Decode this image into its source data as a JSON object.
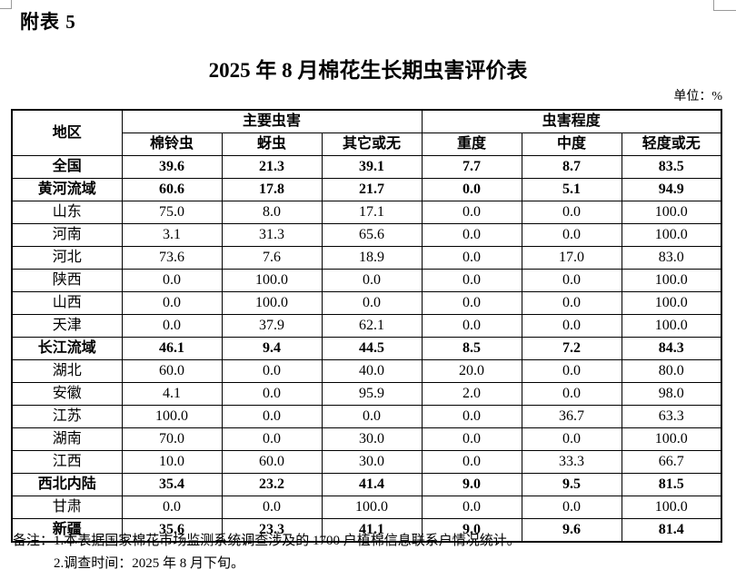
{
  "page": {
    "appendix_label": "附表 5",
    "title": "2025 年 8 月棉花生长期虫害评价表",
    "unit_label": "单位：%"
  },
  "table": {
    "header": {
      "region": "地区",
      "main_pest_group": "主要虫害",
      "severity_group": "虫害程度",
      "sub_headers": [
        "棉铃虫",
        "蚜虫",
        "其它或无",
        "重度",
        "中度",
        "轻度或无"
      ]
    },
    "rows": [
      {
        "region": "全国",
        "bold": true,
        "values": [
          "39.6",
          "21.3",
          "39.1",
          "7.7",
          "8.7",
          "83.5"
        ]
      },
      {
        "region": "黄河流域",
        "bold": true,
        "values": [
          "60.6",
          "17.8",
          "21.7",
          "0.0",
          "5.1",
          "94.9"
        ]
      },
      {
        "region": "山东",
        "bold": false,
        "values": [
          "75.0",
          "8.0",
          "17.1",
          "0.0",
          "0.0",
          "100.0"
        ]
      },
      {
        "region": "河南",
        "bold": false,
        "values": [
          "3.1",
          "31.3",
          "65.6",
          "0.0",
          "0.0",
          "100.0"
        ]
      },
      {
        "region": "河北",
        "bold": false,
        "values": [
          "73.6",
          "7.6",
          "18.9",
          "0.0",
          "17.0",
          "83.0"
        ]
      },
      {
        "region": "陕西",
        "bold": false,
        "values": [
          "0.0",
          "100.0",
          "0.0",
          "0.0",
          "0.0",
          "100.0"
        ]
      },
      {
        "region": "山西",
        "bold": false,
        "values": [
          "0.0",
          "100.0",
          "0.0",
          "0.0",
          "0.0",
          "100.0"
        ]
      },
      {
        "region": "天津",
        "bold": false,
        "values": [
          "0.0",
          "37.9",
          "62.1",
          "0.0",
          "0.0",
          "100.0"
        ]
      },
      {
        "region": "长江流域",
        "bold": true,
        "values": [
          "46.1",
          "9.4",
          "44.5",
          "8.5",
          "7.2",
          "84.3"
        ]
      },
      {
        "region": "湖北",
        "bold": false,
        "values": [
          "60.0",
          "0.0",
          "40.0",
          "20.0",
          "0.0",
          "80.0"
        ]
      },
      {
        "region": "安徽",
        "bold": false,
        "values": [
          "4.1",
          "0.0",
          "95.9",
          "2.0",
          "0.0",
          "98.0"
        ]
      },
      {
        "region": "江苏",
        "bold": false,
        "values": [
          "100.0",
          "0.0",
          "0.0",
          "0.0",
          "36.7",
          "63.3"
        ]
      },
      {
        "region": "湖南",
        "bold": false,
        "values": [
          "70.0",
          "0.0",
          "30.0",
          "0.0",
          "0.0",
          "100.0"
        ]
      },
      {
        "region": "江西",
        "bold": false,
        "values": [
          "10.0",
          "60.0",
          "30.0",
          "0.0",
          "33.3",
          "66.7"
        ]
      },
      {
        "region": "西北内陆",
        "bold": true,
        "values": [
          "35.4",
          "23.2",
          "41.4",
          "9.0",
          "9.5",
          "81.5"
        ]
      },
      {
        "region": "甘肃",
        "bold": false,
        "values": [
          "0.0",
          "0.0",
          "100.0",
          "0.0",
          "0.0",
          "100.0"
        ]
      },
      {
        "region": "新疆",
        "bold": true,
        "values": [
          "35.6",
          "23.3",
          "41.1",
          "9.0",
          "9.6",
          "81.4"
        ]
      }
    ]
  },
  "notes": {
    "line1": "备注：1.本表据国家棉花市场监测系统调查涉及的 1700 户植棉信息联系户情况统计。",
    "line2": "2.调查时间：2025 年 8 月下旬。"
  }
}
